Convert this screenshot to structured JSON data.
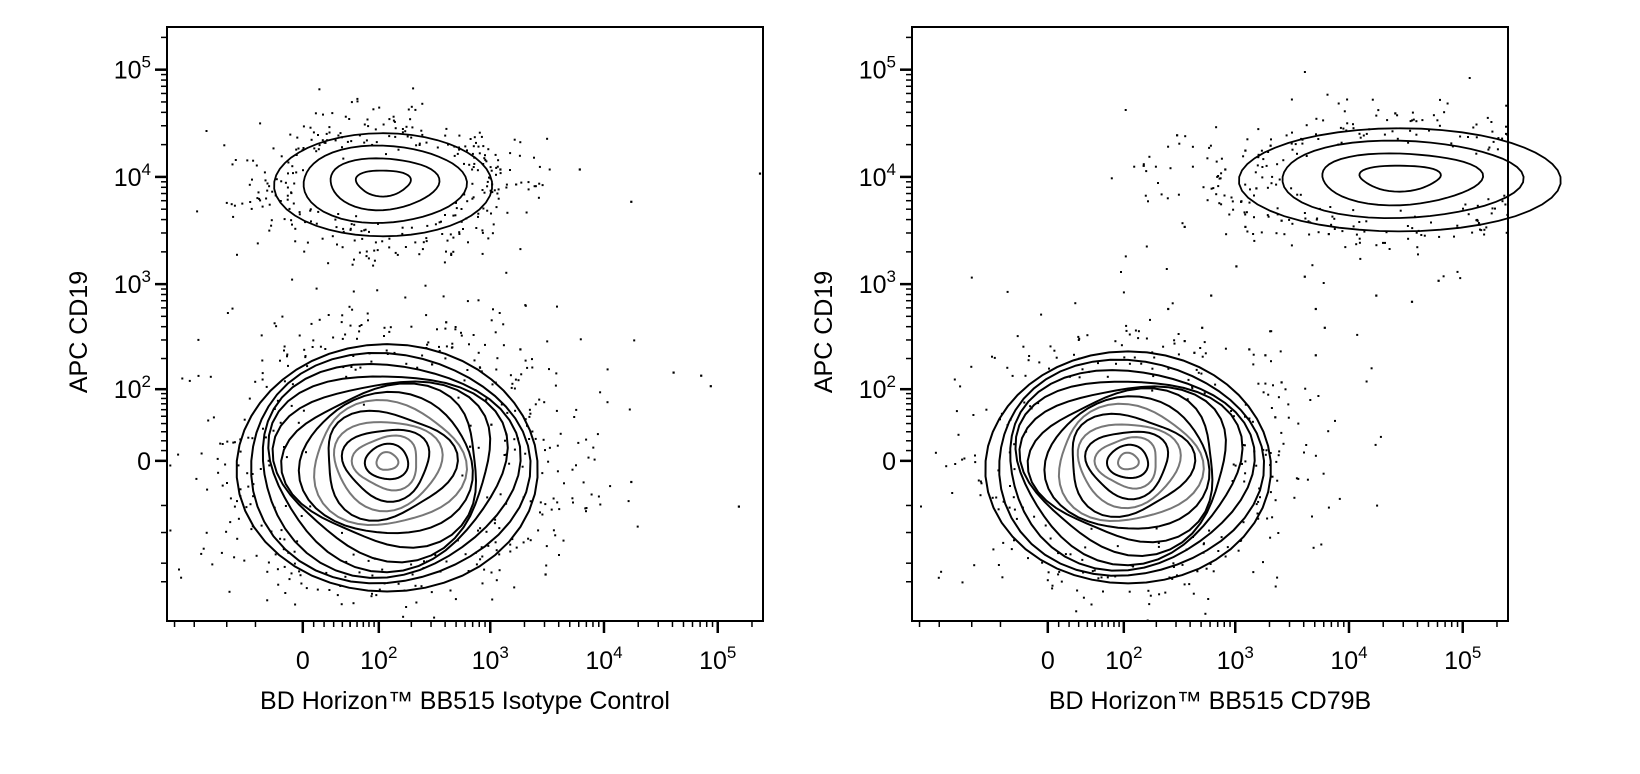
{
  "chart_data": [
    {
      "type": "contour",
      "xlabel": "BD Horizon™ BB515 Isotype Control",
      "ylabel": "APC CD19",
      "x_scale": "biexponential",
      "y_scale": "biexponential",
      "xlim": [
        -350,
        250000
      ],
      "ylim": [
        -700,
        250000
      ],
      "x_ticks": [
        {
          "value": 0,
          "base": "0",
          "exp": ""
        },
        {
          "value": 100,
          "base": "10",
          "exp": "2"
        },
        {
          "value": 1000,
          "base": "10",
          "exp": "3"
        },
        {
          "value": 10000,
          "base": "10",
          "exp": "4"
        },
        {
          "value": 100000,
          "base": "10",
          "exp": "5"
        }
      ],
      "y_ticks": [
        {
          "value": 0,
          "base": "0",
          "exp": ""
        },
        {
          "value": 100,
          "base": "10",
          "exp": "2"
        },
        {
          "value": 1000,
          "base": "10",
          "exp": "3"
        },
        {
          "value": 10000,
          "base": "10",
          "exp": "4"
        },
        {
          "value": 100000,
          "base": "10",
          "exp": "5"
        }
      ],
      "populations": [
        {
          "center": [
            110,
            9000
          ],
          "levels": 4,
          "outer_spread": [
            0.42,
            0.2
          ],
          "dots": 320
        },
        {
          "center": [
            120,
            0
          ],
          "levels": 14,
          "outer_spread": [
            0.58,
            0.48
          ],
          "dots": 420
        }
      ],
      "outlier_points": [
        [
          1200,
          12000
        ],
        [
          6000,
          12000
        ],
        [
          17000,
          6000
        ],
        [
          230000,
          11000
        ],
        [
          3000,
          -250
        ],
        [
          1800,
          250
        ],
        [
          40000,
          150
        ],
        [
          70000,
          140
        ],
        [
          85000,
          110
        ],
        [
          17000,
          -20
        ],
        [
          150000,
          -50
        ],
        [
          900,
          80
        ],
        [
          1000,
          40
        ],
        [
          650,
          15
        ],
        [
          400,
          450
        ],
        [
          300,
          180
        ]
      ]
    },
    {
      "type": "contour",
      "xlabel": "BD Horizon™ BB515 CD79B",
      "ylabel": "APC CD19",
      "x_scale": "biexponential",
      "y_scale": "biexponential",
      "xlim": [
        -350,
        250000
      ],
      "ylim": [
        -700,
        250000
      ],
      "x_ticks": [
        {
          "value": 0,
          "base": "0",
          "exp": ""
        },
        {
          "value": 100,
          "base": "10",
          "exp": "2"
        },
        {
          "value": 1000,
          "base": "10",
          "exp": "3"
        },
        {
          "value": 10000,
          "base": "10",
          "exp": "4"
        },
        {
          "value": 100000,
          "base": "10",
          "exp": "5"
        }
      ],
      "y_ticks": [
        {
          "value": 0,
          "base": "0",
          "exp": ""
        },
        {
          "value": 100,
          "base": "10",
          "exp": "2"
        },
        {
          "value": 1000,
          "base": "10",
          "exp": "3"
        },
        {
          "value": 10000,
          "base": "10",
          "exp": "4"
        },
        {
          "value": 100000,
          "base": "10",
          "exp": "5"
        }
      ],
      "populations": [
        {
          "center": [
            28000,
            10000
          ],
          "levels": 4,
          "outer_spread": [
            0.62,
            0.2
          ],
          "dots": 330
        },
        {
          "center": [
            110,
            0
          ],
          "levels": 14,
          "outer_spread": [
            0.55,
            0.45
          ],
          "dots": 300
        }
      ],
      "outlier_points": [
        [
          300,
          25000
        ],
        [
          150,
          13000
        ],
        [
          350,
          3500
        ],
        [
          800,
          12000
        ],
        [
          1100,
          6000
        ],
        [
          1500,
          8000
        ],
        [
          2500,
          4000
        ],
        [
          1000,
          1500
        ],
        [
          1200,
          3500
        ],
        [
          600,
          800
        ],
        [
          250,
          600
        ],
        [
          350,
          300
        ],
        [
          500,
          400
        ],
        [
          1800,
          220
        ],
        [
          1300,
          250
        ],
        [
          2500,
          120
        ],
        [
          2200,
          50
        ],
        [
          6000,
          400
        ],
        [
          5000,
          600
        ],
        [
          5000,
          220
        ],
        [
          4000,
          1200
        ],
        [
          6500,
          3000
        ],
        [
          17000,
          800
        ],
        [
          35000,
          700
        ],
        [
          60000,
          1100
        ],
        [
          25000,
          40000
        ],
        [
          1200,
          18000
        ],
        [
          2000,
          20000
        ]
      ]
    }
  ]
}
